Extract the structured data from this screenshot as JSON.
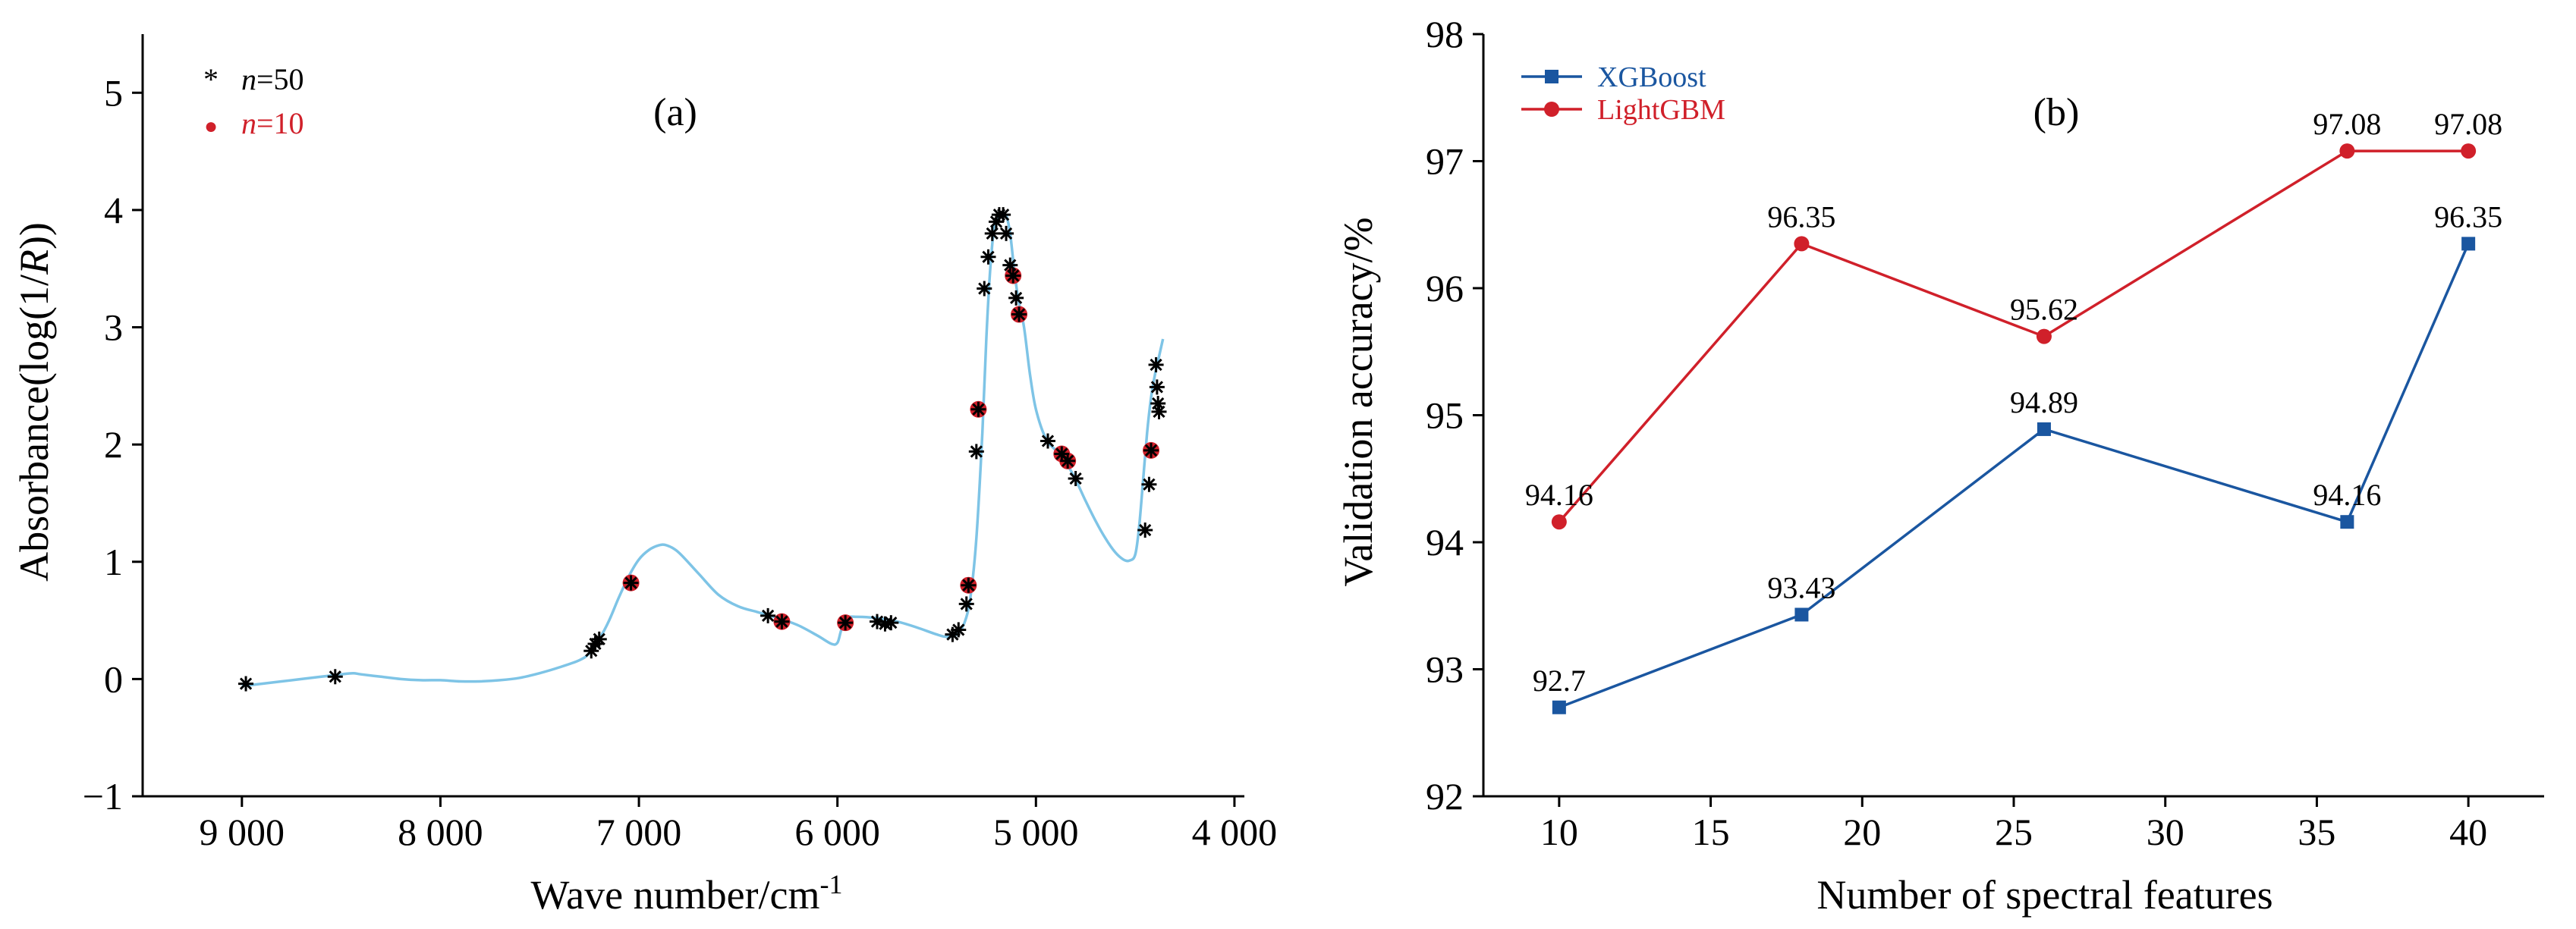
{
  "chart_data": [
    {
      "type": "scatter",
      "panel_label": "(a)",
      "xlabel": "Wave number/cm",
      "xlabel_sup": "-1",
      "ylabel_pre": "Absorbance(log(1/",
      "ylabel_italic": "R",
      "ylabel_post": "))",
      "xlim": [
        9500,
        3950
      ],
      "ylim": [
        -1,
        5.5
      ],
      "x_ticks": [
        9000,
        8000,
        7000,
        6000,
        5000,
        4000
      ],
      "x_tick_labels": [
        "9 000",
        "8 000",
        "7 000",
        "6 000",
        "5 000",
        "4 000"
      ],
      "y_ticks": [
        -1,
        0,
        1,
        2,
        3,
        4,
        5
      ],
      "y_tick_labels": [
        "−1",
        "0",
        "1",
        "2",
        "3",
        "4",
        "5"
      ],
      "legend": [
        {
          "marker": "*",
          "italic": "n",
          "text": "=50",
          "color": "#000000"
        },
        {
          "marker": "●",
          "italic": "n",
          "text": "=10",
          "color": "#d0202a"
        }
      ],
      "spectrum_color": "#7ec4e6",
      "spectrum": [
        [
          9000,
          -0.06
        ],
        [
          8900,
          -0.04
        ],
        [
          8800,
          -0.02
        ],
        [
          8700,
          0.0
        ],
        [
          8600,
          0.02
        ],
        [
          8500,
          0.04
        ],
        [
          8440,
          0.05
        ],
        [
          8400,
          0.04
        ],
        [
          8300,
          0.02
        ],
        [
          8200,
          0.0
        ],
        [
          8100,
          -0.01
        ],
        [
          8000,
          -0.01
        ],
        [
          7900,
          -0.02
        ],
        [
          7800,
          -0.02
        ],
        [
          7700,
          -0.01
        ],
        [
          7600,
          0.01
        ],
        [
          7500,
          0.05
        ],
        [
          7400,
          0.1
        ],
        [
          7300,
          0.16
        ],
        [
          7250,
          0.22
        ],
        [
          7200,
          0.34
        ],
        [
          7150,
          0.5
        ],
        [
          7100,
          0.7
        ],
        [
          7050,
          0.88
        ],
        [
          7000,
          1.02
        ],
        [
          6950,
          1.1
        ],
        [
          6900,
          1.14
        ],
        [
          6860,
          1.14
        ],
        [
          6800,
          1.08
        ],
        [
          6700,
          0.9
        ],
        [
          6600,
          0.72
        ],
        [
          6500,
          0.62
        ],
        [
          6400,
          0.57
        ],
        [
          6300,
          0.52
        ],
        [
          6200,
          0.46
        ],
        [
          6100,
          0.37
        ],
        [
          6030,
          0.3
        ],
        [
          6000,
          0.31
        ],
        [
          5980,
          0.42
        ],
        [
          5950,
          0.52
        ],
        [
          5900,
          0.53
        ],
        [
          5800,
          0.52
        ],
        [
          5700,
          0.49
        ],
        [
          5600,
          0.44
        ],
        [
          5500,
          0.38
        ],
        [
          5450,
          0.36
        ],
        [
          5400,
          0.38
        ],
        [
          5360,
          0.48
        ],
        [
          5330,
          0.7
        ],
        [
          5300,
          1.2
        ],
        [
          5270,
          2.1
        ],
        [
          5250,
          2.9
        ],
        [
          5230,
          3.5
        ],
        [
          5210,
          3.85
        ],
        [
          5180,
          3.96
        ],
        [
          5150,
          3.95
        ],
        [
          5130,
          3.8
        ],
        [
          5110,
          3.5
        ],
        [
          5090,
          3.25
        ],
        [
          5060,
          3.0
        ],
        [
          5030,
          2.6
        ],
        [
          5000,
          2.3
        ],
        [
          4950,
          2.05
        ],
        [
          4900,
          1.95
        ],
        [
          4850,
          1.85
        ],
        [
          4800,
          1.7
        ],
        [
          4750,
          1.52
        ],
        [
          4700,
          1.35
        ],
        [
          4650,
          1.2
        ],
        [
          4600,
          1.08
        ],
        [
          4560,
          1.02
        ],
        [
          4530,
          1.01
        ],
        [
          4500,
          1.06
        ],
        [
          4480,
          1.3
        ],
        [
          4460,
          1.7
        ],
        [
          4440,
          2.1
        ],
        [
          4420,
          2.4
        ],
        [
          4400,
          2.6
        ],
        [
          4380,
          2.75
        ],
        [
          4360,
          2.9
        ]
      ],
      "points_n50": [
        [
          8980,
          -0.04
        ],
        [
          8530,
          0.02
        ],
        [
          7240,
          0.24
        ],
        [
          7220,
          0.3
        ],
        [
          7200,
          0.34
        ],
        [
          7040,
          0.82
        ],
        [
          6350,
          0.54
        ],
        [
          6280,
          0.49
        ],
        [
          5960,
          0.48
        ],
        [
          5800,
          0.49
        ],
        [
          5760,
          0.47
        ],
        [
          5730,
          0.48
        ],
        [
          5420,
          0.38
        ],
        [
          5390,
          0.42
        ],
        [
          5350,
          0.64
        ],
        [
          5340,
          0.8
        ],
        [
          5300,
          1.94
        ],
        [
          5290,
          2.3
        ],
        [
          5260,
          3.33
        ],
        [
          5240,
          3.6
        ],
        [
          5220,
          3.8
        ],
        [
          5200,
          3.9
        ],
        [
          5185,
          3.96
        ],
        [
          5165,
          3.96
        ],
        [
          5150,
          3.8
        ],
        [
          5130,
          3.53
        ],
        [
          5115,
          3.44
        ],
        [
          5100,
          3.25
        ],
        [
          5085,
          3.11
        ],
        [
          4940,
          2.03
        ],
        [
          4870,
          1.92
        ],
        [
          4840,
          1.86
        ],
        [
          4800,
          1.71
        ],
        [
          4450,
          1.27
        ],
        [
          4430,
          1.66
        ],
        [
          4420,
          1.95
        ],
        [
          4395,
          2.68
        ],
        [
          4390,
          2.49
        ],
        [
          4385,
          2.35
        ],
        [
          4380,
          2.28
        ]
      ],
      "points_n10": [
        [
          7040,
          0.82
        ],
        [
          6280,
          0.49
        ],
        [
          5960,
          0.48
        ],
        [
          5340,
          0.8
        ],
        [
          5290,
          2.3
        ],
        [
          5115,
          3.44
        ],
        [
          5085,
          3.11
        ],
        [
          4870,
          1.92
        ],
        [
          4840,
          1.86
        ],
        [
          4420,
          1.95
        ]
      ]
    },
    {
      "type": "line",
      "panel_label": "(b)",
      "xlabel": "Number of spectral features",
      "ylabel": "Validation accuracy/%",
      "xlim": [
        7.5,
        42.5
      ],
      "ylim": [
        92,
        98
      ],
      "x_ticks": [
        10,
        15,
        20,
        25,
        30,
        35,
        40
      ],
      "y_ticks": [
        92,
        93,
        94,
        95,
        96,
        97,
        98
      ],
      "x": [
        10,
        18,
        26,
        36,
        40
      ],
      "series": [
        {
          "name": "XGBoost",
          "color": "#1a56a0",
          "marker": "square",
          "values": [
            92.7,
            93.43,
            94.89,
            94.16,
            96.35
          ],
          "labels": [
            "92.7",
            "93.43",
            "94.89",
            "94.16",
            "96.35"
          ]
        },
        {
          "name": "LightGBM",
          "color": "#d0202a",
          "marker": "circle",
          "values": [
            94.16,
            96.35,
            95.62,
            97.08,
            97.08
          ],
          "labels": [
            "94.16",
            "96.35",
            "95.62",
            "97.08",
            "97.08"
          ]
        }
      ]
    }
  ]
}
